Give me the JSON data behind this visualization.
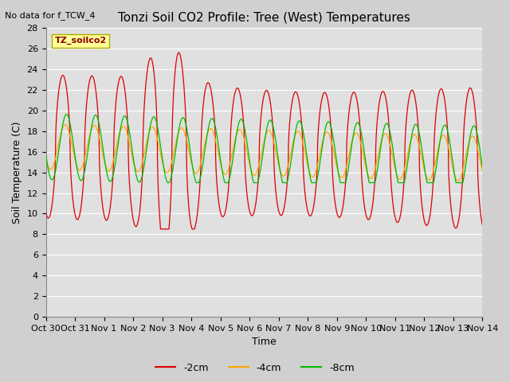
{
  "title": "Tonzi Soil CO2 Profile: Tree (West) Temperatures",
  "no_data_label": "No data for f_TCW_4",
  "legend_box_label": "TZ_soilco2",
  "xlabel": "Time",
  "ylabel": "Soil Temperature (C)",
  "ylim": [
    0,
    28
  ],
  "bg_color": "#e0e0e0",
  "fig_bg_color": "#d0d0d0",
  "grid_color": "white",
  "series": [
    {
      "label": "-2cm",
      "color": "#dd0000"
    },
    {
      "label": "-4cm",
      "color": "#ffa500"
    },
    {
      "label": "-8cm",
      "color": "#00bb00"
    }
  ],
  "xtick_labels": [
    "Oct 30",
    "Oct 31",
    "Nov 1",
    "Nov 2",
    "Nov 3",
    "Nov 4",
    "Nov 5",
    "Nov 6",
    "Nov 7",
    "Nov 8",
    "Nov 9",
    "Nov 10",
    "Nov 11",
    "Nov 12",
    "Nov 13",
    "Nov 14"
  ],
  "n_days": 15,
  "title_fontsize": 11,
  "axis_fontsize": 9,
  "tick_fontsize": 8
}
